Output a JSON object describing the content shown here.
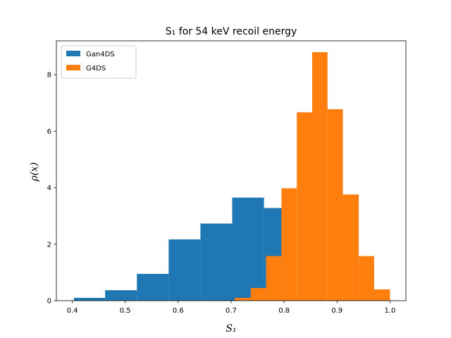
{
  "chart_data": {
    "type": "bar",
    "title": "S₁ for 54 keV recoil energy",
    "xlabel": "S₁",
    "ylabel": "ρ(x)",
    "xlim": [
      0.37,
      1.03
    ],
    "ylim": [
      0,
      9.2
    ],
    "xticks": [
      "0.4",
      "0.5",
      "0.6",
      "0.7",
      "0.8",
      "0.9",
      "1.0"
    ],
    "yticks": [
      "0",
      "2",
      "4",
      "6",
      "8"
    ],
    "grid": false,
    "legend_position": "upper-left",
    "series": [
      {
        "name": "Gan4DS",
        "color": "#1f77b4",
        "bins": [
          {
            "x0": 0.403,
            "x1": 0.462,
            "value": 0.1
          },
          {
            "x0": 0.462,
            "x1": 0.522,
            "value": 0.37
          },
          {
            "x0": 0.522,
            "x1": 0.582,
            "value": 0.95
          },
          {
            "x0": 0.582,
            "x1": 0.642,
            "value": 2.17
          },
          {
            "x0": 0.642,
            "x1": 0.702,
            "value": 2.73
          },
          {
            "x0": 0.702,
            "x1": 0.762,
            "value": 3.65
          },
          {
            "x0": 0.762,
            "x1": 0.822,
            "value": 3.28
          }
        ]
      },
      {
        "name": "G4DS",
        "color": "#ff7f0e",
        "bins": [
          {
            "x0": 0.707,
            "x1": 0.737,
            "value": 0.1
          },
          {
            "x0": 0.737,
            "x1": 0.766,
            "value": 0.45
          },
          {
            "x0": 0.766,
            "x1": 0.795,
            "value": 1.58
          },
          {
            "x0": 0.795,
            "x1": 0.824,
            "value": 3.98
          },
          {
            "x0": 0.824,
            "x1": 0.853,
            "value": 6.67
          },
          {
            "x0": 0.853,
            "x1": 0.882,
            "value": 8.8
          },
          {
            "x0": 0.882,
            "x1": 0.911,
            "value": 6.78
          },
          {
            "x0": 0.911,
            "x1": 0.941,
            "value": 3.76
          },
          {
            "x0": 0.941,
            "x1": 0.97,
            "value": 1.58
          },
          {
            "x0": 0.97,
            "x1": 1.0,
            "value": 0.4
          }
        ]
      }
    ]
  }
}
